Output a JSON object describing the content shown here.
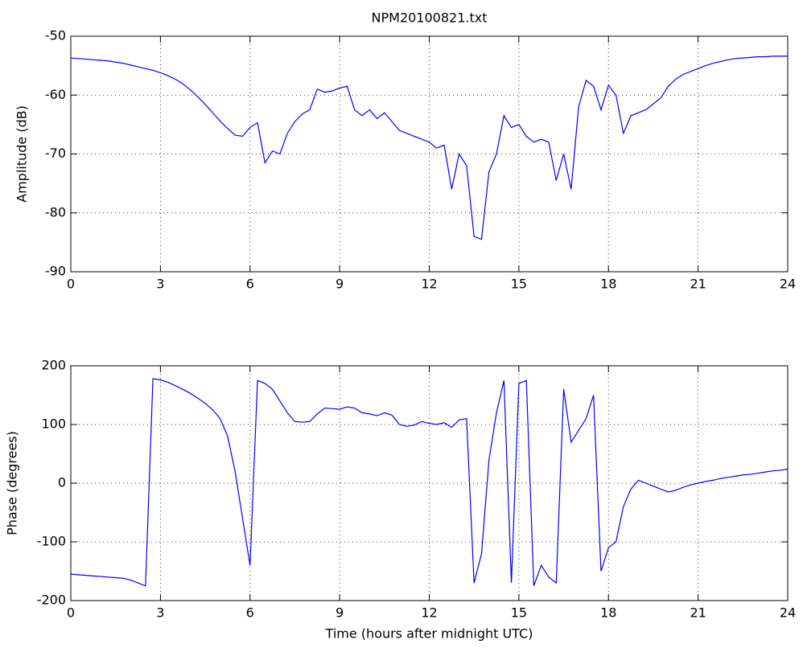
{
  "chart_data": [
    {
      "type": "line",
      "title": "NPM20100821.txt",
      "ylabel": "Amplitude (dB)",
      "x": [
        0,
        0.25,
        0.5,
        0.75,
        1,
        1.25,
        1.5,
        1.75,
        2,
        2.25,
        2.5,
        2.75,
        3,
        3.25,
        3.5,
        3.75,
        4,
        4.25,
        4.5,
        4.75,
        5,
        5.25,
        5.5,
        5.75,
        6,
        6.25,
        6.5,
        6.75,
        7,
        7.25,
        7.5,
        7.75,
        8,
        8.25,
        8.5,
        8.75,
        9,
        9.25,
        9.5,
        9.75,
        10,
        10.25,
        10.5,
        10.75,
        11,
        11.25,
        11.5,
        11.75,
        12,
        12.25,
        12.5,
        12.75,
        13,
        13.25,
        13.5,
        13.75,
        14,
        14.25,
        14.5,
        14.75,
        15,
        15.25,
        15.5,
        15.75,
        16,
        16.25,
        16.5,
        16.75,
        17,
        17.25,
        17.5,
        17.75,
        18,
        18.25,
        18.5,
        18.75,
        19,
        19.25,
        19.5,
        19.75,
        20,
        20.25,
        20.5,
        20.75,
        21,
        21.25,
        21.5,
        21.75,
        22,
        22.25,
        22.5,
        22.75,
        23,
        23.25,
        23.5,
        23.75,
        24
      ],
      "series": [
        {
          "color": "#0000ff",
          "values": [
            -53.7,
            -53.8,
            -53.9,
            -54.0,
            -54.1,
            -54.2,
            -54.4,
            -54.6,
            -54.9,
            -55.2,
            -55.5,
            -55.8,
            -56.2,
            -56.7,
            -57.3,
            -58.1,
            -59.1,
            -60.3,
            -61.6,
            -63.0,
            -64.4,
            -65.7,
            -66.8,
            -67.0,
            -65.5,
            -64.7,
            -71.5,
            -69.5,
            -70.0,
            -66.5,
            -64.5,
            -63.2,
            -62.5,
            -59.0,
            -59.5,
            -59.3,
            -58.8,
            -58.5,
            -62.5,
            -63.5,
            -62.5,
            -64.0,
            -63.0,
            -64.5,
            -66.0,
            -66.5,
            -67.0,
            -67.5,
            -68.0,
            -69.0,
            -68.5,
            -76.0,
            -70.0,
            -72.0,
            -84.0,
            -84.5,
            -73.0,
            -70.0,
            -63.5,
            -65.5,
            -65.0,
            -67.0,
            -68.0,
            -67.5,
            -68.0,
            -74.5,
            -70.0,
            -76.0,
            -62.0,
            -57.5,
            -58.5,
            -62.5,
            -58.3,
            -60.0,
            -66.5,
            -63.5,
            -63.0,
            -62.5,
            -61.5,
            -60.5,
            -58.5,
            -57.3,
            -56.5,
            -56.0,
            -55.5,
            -55.0,
            -54.6,
            -54.3,
            -54.0,
            -53.8,
            -53.7,
            -53.6,
            -53.5,
            -53.5,
            -53.4,
            -53.4,
            -53.4
          ]
        }
      ],
      "xlim": [
        0,
        24
      ],
      "xticks": [
        0,
        3,
        6,
        9,
        12,
        15,
        18,
        21,
        24
      ],
      "ylim": [
        -90,
        -50
      ],
      "yticks": [
        -90,
        -80,
        -70,
        -60,
        -50
      ],
      "grid": true
    },
    {
      "type": "line",
      "ylabel": "Phase (degrees)",
      "xlabel": "Time (hours after midnight UTC)",
      "x": [
        0,
        0.25,
        0.5,
        0.75,
        1,
        1.25,
        1.5,
        1.75,
        2,
        2.25,
        2.5,
        2.75,
        3,
        3.25,
        3.5,
        3.75,
        4,
        4.25,
        4.5,
        4.75,
        5,
        5.25,
        5.5,
        5.75,
        6,
        6.25,
        6.5,
        6.75,
        7,
        7.25,
        7.5,
        7.75,
        8,
        8.25,
        8.5,
        8.75,
        9,
        9.25,
        9.5,
        9.75,
        10,
        10.25,
        10.5,
        10.75,
        11,
        11.25,
        11.5,
        11.75,
        12,
        12.25,
        12.5,
        12.75,
        13,
        13.25,
        13.5,
        13.75,
        14,
        14.25,
        14.5,
        14.75,
        15,
        15.25,
        15.5,
        15.75,
        16,
        16.25,
        16.5,
        16.75,
        17,
        17.25,
        17.5,
        17.75,
        18,
        18.25,
        18.5,
        18.75,
        19,
        19.25,
        19.5,
        19.75,
        20,
        20.25,
        20.5,
        20.75,
        21,
        21.25,
        21.5,
        21.75,
        22,
        22.25,
        22.5,
        22.75,
        23,
        23.25,
        23.5,
        23.75,
        24
      ],
      "series": [
        {
          "color": "#0000ff",
          "values": [
            -155,
            -156,
            -157,
            -158,
            -159,
            -160,
            -161,
            -162,
            -165,
            -170,
            -175,
            178,
            176,
            172,
            166,
            160,
            153,
            145,
            136,
            125,
            110,
            80,
            20,
            -60,
            -140,
            175,
            170,
            160,
            140,
            120,
            105,
            104,
            105,
            118,
            128,
            127,
            126,
            130,
            128,
            120,
            118,
            115,
            120,
            116,
            100,
            97,
            99,
            105,
            102,
            100,
            103,
            95,
            108,
            110,
            -170,
            -120,
            40,
            120,
            175,
            -170,
            170,
            175,
            -175,
            -140,
            -160,
            -170,
            160,
            70,
            90,
            110,
            150,
            -150,
            -110,
            -100,
            -40,
            -10,
            5,
            0,
            -5,
            -10,
            -15,
            -12,
            -7,
            -3,
            0,
            3,
            5,
            8,
            10,
            12,
            14,
            15,
            17,
            19,
            21,
            22,
            24
          ]
        }
      ],
      "xlim": [
        0,
        24
      ],
      "xticks": [
        0,
        3,
        6,
        9,
        12,
        15,
        18,
        21,
        24
      ],
      "ylim": [
        -200,
        200
      ],
      "yticks": [
        -200,
        -100,
        0,
        100,
        200
      ],
      "grid": true
    }
  ]
}
